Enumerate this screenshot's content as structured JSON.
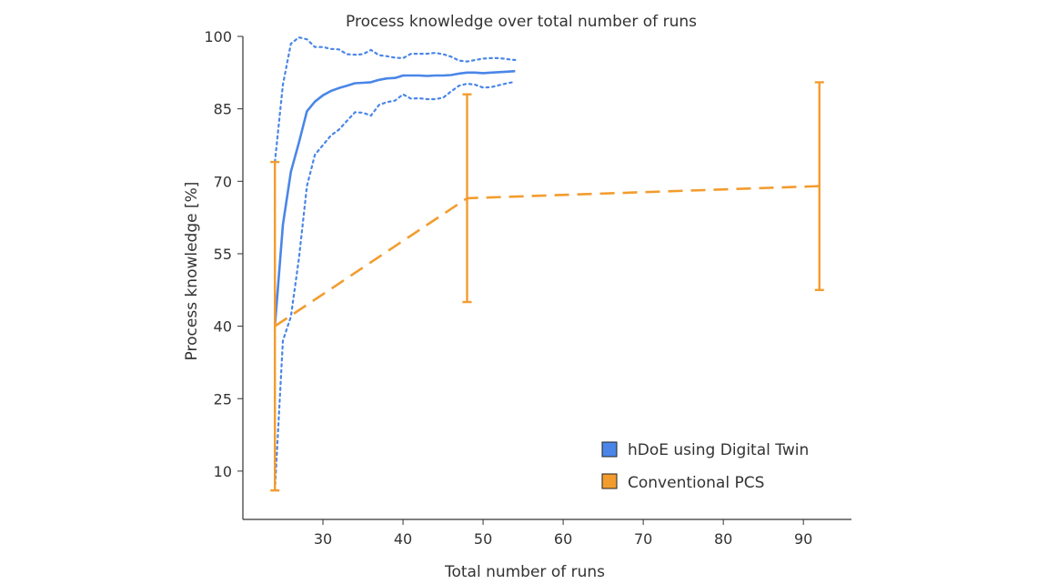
{
  "chart_data": {
    "type": "line",
    "title": "Process knowledge over total number of runs",
    "xlabel": "Total number of runs",
    "ylabel": "Process knowledge [%]",
    "xlim": [
      20,
      96
    ],
    "ylim": [
      0,
      100
    ],
    "xticks": [
      30,
      40,
      50,
      60,
      70,
      80,
      90
    ],
    "yticks": [
      10,
      25,
      40,
      55,
      70,
      85,
      100
    ],
    "grid": false,
    "legend_position": "bottom-right",
    "series": [
      {
        "name": "hDoE using Digital Twin",
        "color": "#4a86e8",
        "style": "solid",
        "x": [
          24,
          25,
          26,
          27,
          28,
          29,
          30,
          31,
          32,
          33,
          34,
          35,
          36,
          37,
          38,
          39,
          40,
          41,
          42,
          43,
          44,
          45,
          46,
          47,
          48,
          49,
          50,
          51,
          52,
          53,
          54
        ],
        "y": [
          40,
          61,
          72,
          78,
          84.5,
          86.5,
          87.8,
          88.7,
          89.3,
          89.8,
          90.3,
          90.4,
          90.5,
          91.0,
          91.3,
          91.4,
          91.9,
          91.9,
          91.9,
          91.8,
          91.9,
          91.9,
          92.0,
          92.3,
          92.5,
          92.5,
          92.4,
          92.5,
          92.6,
          92.7,
          92.8
        ],
        "upper": [
          74,
          90,
          98.5,
          99.8,
          99.4,
          97.8,
          97.8,
          97.4,
          97.3,
          96.3,
          96.2,
          96.3,
          97.2,
          96.1,
          95.9,
          95.6,
          95.5,
          96.4,
          96.4,
          96.4,
          96.6,
          96.3,
          95.8,
          95.0,
          94.8,
          95.1,
          95.4,
          95.5,
          95.5,
          95.3,
          95.1
        ],
        "lower": [
          6,
          37,
          42,
          54,
          69,
          75.5,
          77.5,
          79.5,
          80.7,
          82.5,
          84.3,
          84.2,
          83.6,
          85.8,
          86.4,
          86.7,
          88.0,
          87.1,
          87.2,
          87.0,
          87.0,
          87.3,
          88.6,
          89.8,
          90.2,
          90.0,
          89.4,
          89.5,
          89.9,
          90.3,
          90.6
        ]
      },
      {
        "name": "Conventional PCS",
        "color": "#f39c2e",
        "style": "dashed",
        "x": [
          24,
          48,
          92
        ],
        "y": [
          40,
          66.5,
          69
        ],
        "err_low": [
          6,
          45,
          47.5
        ],
        "err_high": [
          74,
          88,
          90.5
        ]
      }
    ]
  }
}
